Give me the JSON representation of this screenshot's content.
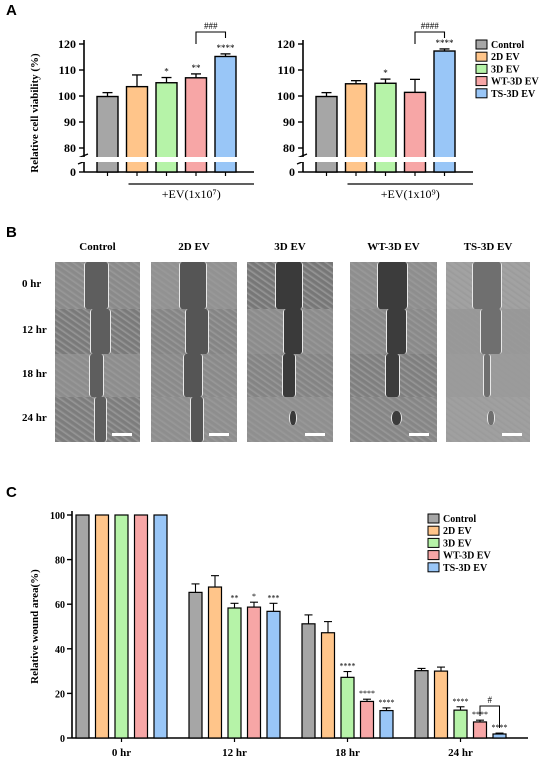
{
  "panels": {
    "a": "A",
    "b": "B",
    "c": "C"
  },
  "colors": {
    "Control": "#a6a6a6",
    "2D EV": "#ffc58a",
    "3D EV": "#b6f3a8",
    "WT-3D EV": "#f7a6a6",
    "TS-3D EV": "#99c6f7"
  },
  "legend_a": [
    "Control",
    "2D EV",
    "3D EV",
    "WT-3D EV",
    "TS-3D EV"
  ],
  "chart_data": [
    {
      "type": "bar",
      "panel": "A-left",
      "categories": [
        "Control",
        "2D EV",
        "3D EV",
        "WT-3D EV",
        "TS-3D EV"
      ],
      "values": [
        99.8,
        103.6,
        105.1,
        107.0,
        115.2
      ],
      "errors": [
        1.5,
        4.5,
        2.0,
        1.5,
        1.0
      ],
      "significance": [
        "",
        "",
        "*",
        "**",
        "****"
      ],
      "bracket": {
        "from": 3,
        "to": 4,
        "label": "###"
      },
      "group_label": "+EV(1x10⁷)",
      "ylabel": "Relative cell viability (%)",
      "yticks": [
        80,
        90,
        100,
        110,
        120
      ],
      "axis_break": true,
      "baseline_tick": "0"
    },
    {
      "type": "bar",
      "panel": "A-right",
      "categories": [
        "Control",
        "2D EV",
        "3D EV",
        "WT-3D EV",
        "TS-3D EV"
      ],
      "values": [
        99.8,
        104.7,
        104.9,
        101.4,
        117.3
      ],
      "errors": [
        1.5,
        1.2,
        1.6,
        5.0,
        0.8
      ],
      "significance": [
        "",
        "",
        "*",
        "",
        "****"
      ],
      "bracket": {
        "from": 3,
        "to": 4,
        "label": "####"
      },
      "group_label": "+EV(1x10⁹)",
      "yticks": [
        80,
        90,
        100,
        110,
        120
      ],
      "axis_break": true,
      "baseline_tick": "0"
    },
    {
      "type": "bar",
      "panel": "C",
      "categories": [
        "0 hr",
        "12 hr",
        "18 hr",
        "24 hr"
      ],
      "series": [
        {
          "name": "Control",
          "values": [
            100,
            65.3,
            51.2,
            30.2
          ],
          "errors": [
            0,
            3.8,
            4.0,
            1.0
          ],
          "significance": [
            "",
            "",
            "",
            ""
          ]
        },
        {
          "name": "2D EV",
          "values": [
            100,
            67.7,
            47.2,
            30.0
          ],
          "errors": [
            0,
            5.1,
            5.0,
            1.8
          ],
          "significance": [
            "",
            "",
            "",
            ""
          ]
        },
        {
          "name": "3D EV",
          "values": [
            100,
            58.3,
            27.2,
            12.5
          ],
          "errors": [
            0,
            2.1,
            2.6,
            1.5
          ],
          "significance": [
            "",
            "**",
            "****",
            "****"
          ]
        },
        {
          "name": "WT-3D EV",
          "values": [
            100,
            58.7,
            16.4,
            7.2
          ],
          "errors": [
            0,
            2.2,
            1.0,
            0.8
          ],
          "significance": [
            "",
            "*",
            "****",
            "****"
          ]
        },
        {
          "name": "TS-3D EV",
          "values": [
            100,
            56.8,
            12.3,
            1.8
          ],
          "errors": [
            0,
            3.6,
            1.2,
            0.4
          ],
          "significance": [
            "",
            "***",
            "****",
            "****"
          ]
        }
      ],
      "bracket": {
        "category": 3,
        "from": 3,
        "to": 4,
        "label": "#"
      },
      "ylabel": "Relative wound area(%)",
      "ylim": [
        0,
        100
      ],
      "yticks": [
        0,
        20,
        40,
        60,
        80,
        100
      ],
      "legend": "top-right",
      "grid": false
    }
  ],
  "panel_b": {
    "columns": [
      "Control",
      "2D EV",
      "3D EV",
      "WT-3D EV",
      "TS-3D EV"
    ],
    "rows": [
      "0 hr",
      "12 hr",
      "18 hr",
      "24 hr"
    ]
  }
}
